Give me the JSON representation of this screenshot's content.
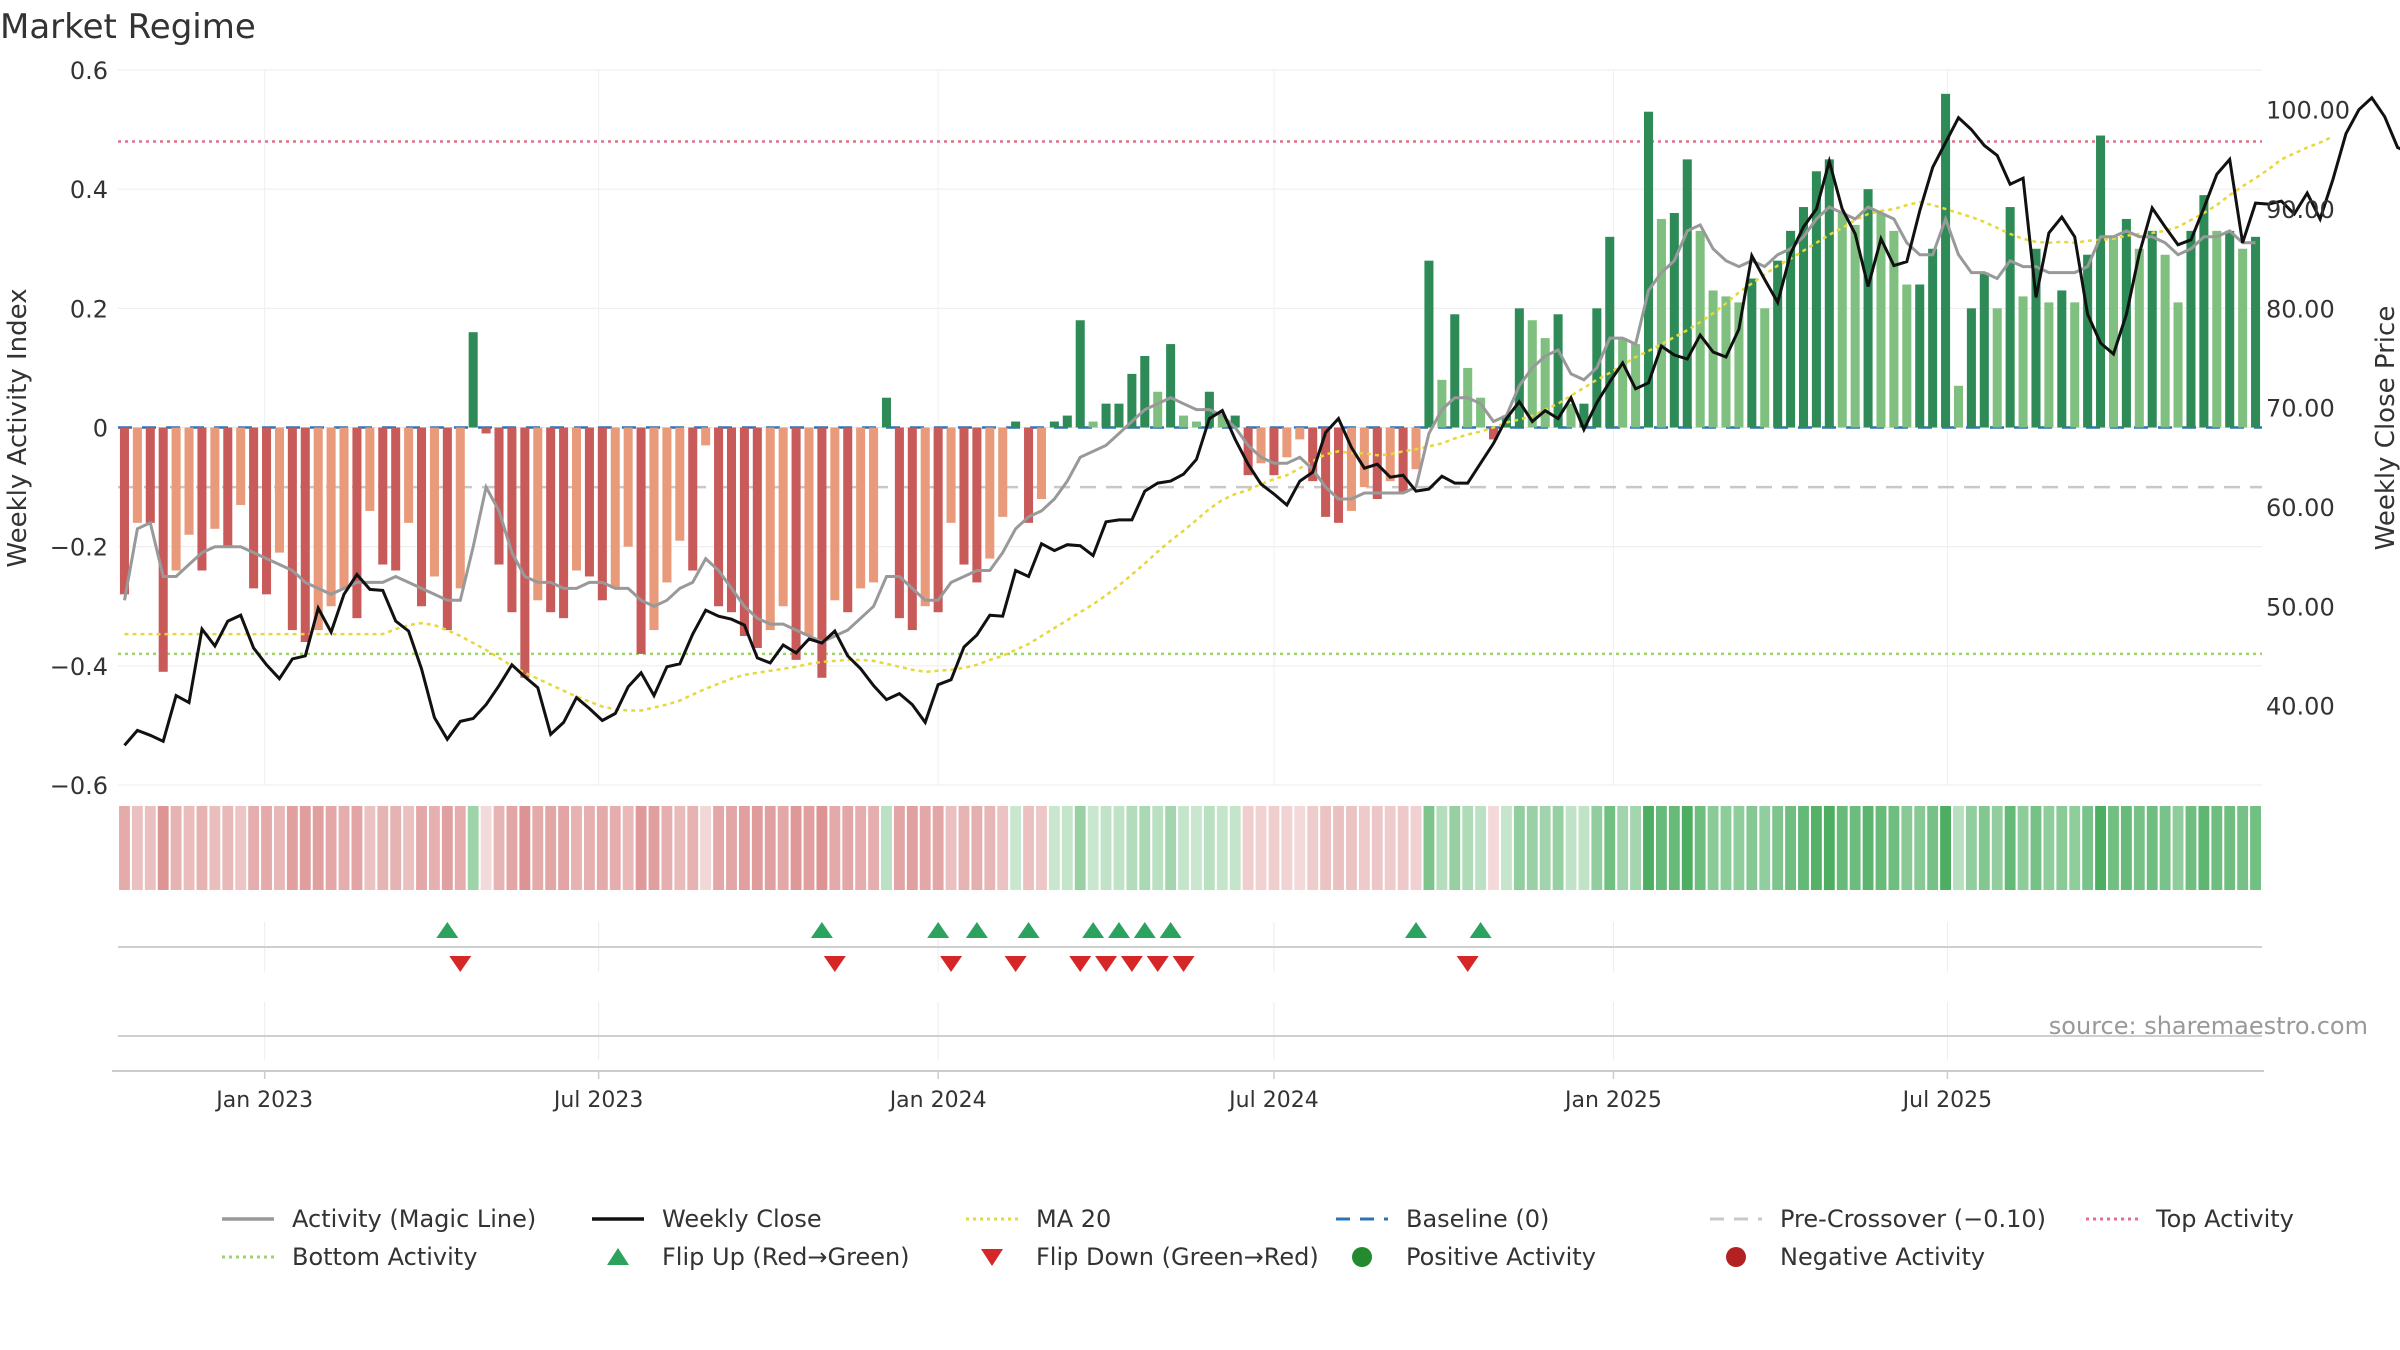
{
  "chart_data": {
    "type": "bar",
    "title": "Market Regime",
    "source": "source: sharemaestro.com",
    "left_axis": {
      "label": "Weekly Activity Index",
      "ylim": [
        -0.6,
        0.6
      ],
      "ticks": [
        "0.6",
        "0.4",
        "0.2",
        "0",
        "−0.2",
        "−0.4",
        "−0.6"
      ]
    },
    "right_axis": {
      "label": "Weekly Close Price",
      "ylim": [
        32.0,
        104.0
      ],
      "ticks": [
        "100.00",
        "90.00",
        "80.00",
        "70.00",
        "60.00",
        "50.00",
        "40.00"
      ]
    },
    "x_ticks": [
      "Jan 2023",
      "Jul 2023",
      "Jan 2024",
      "Jul 2024",
      "Jan 2025",
      "Jul 2025"
    ],
    "grid": true,
    "legend_position": "bottom",
    "reference_lines": {
      "top_activity": 0.48,
      "bottom_activity": -0.38,
      "baseline": 0.0,
      "pre_crossover": -0.1
    },
    "legend": [
      {
        "label": "Activity (Magic Line)",
        "kind": "line",
        "color": "#999999"
      },
      {
        "label": "Weekly Close",
        "kind": "line",
        "color": "#111111"
      },
      {
        "label": "MA 20",
        "kind": "dotted",
        "color": "#e6d83a"
      },
      {
        "label": "Baseline (0)",
        "kind": "dashed",
        "color": "#2d73b4"
      },
      {
        "label": "Pre-Crossover (−0.10)",
        "kind": "dashed",
        "color": "#c8c8c8"
      },
      {
        "label": "Top Activity",
        "kind": "dotted",
        "color": "#e0708c"
      },
      {
        "label": "Bottom Activity",
        "kind": "dotted",
        "color": "#9ed36a"
      },
      {
        "label": "Flip Up (Red→Green)",
        "kind": "triangle-up",
        "color": "#2ca25f"
      },
      {
        "label": "Flip Down (Green→Red)",
        "kind": "triangle-down",
        "color": "#d62728"
      },
      {
        "label": "Positive Activity",
        "kind": "dot",
        "color": "#238b2e"
      },
      {
        "label": "Negative Activity",
        "kind": "dot",
        "color": "#b22222"
      }
    ],
    "colors": {
      "pos_strong": "#2e8b57",
      "pos_weak": "#7fbf7f",
      "neg_strong": "#c85a5a",
      "neg_weak": "#e89a7a"
    },
    "x_start": "2022-10-17",
    "activity": [
      -0.28,
      -0.16,
      -0.16,
      -0.41,
      -0.24,
      -0.18,
      -0.24,
      -0.17,
      -0.2,
      -0.13,
      -0.27,
      -0.28,
      -0.21,
      -0.34,
      -0.36,
      -0.34,
      -0.3,
      -0.27,
      -0.32,
      -0.14,
      -0.23,
      -0.24,
      -0.16,
      -0.3,
      -0.25,
      -0.34,
      -0.27,
      0.16,
      -0.01,
      -0.23,
      -0.31,
      -0.42,
      -0.29,
      -0.31,
      -0.32,
      -0.24,
      -0.25,
      -0.29,
      -0.27,
      -0.2,
      -0.38,
      -0.34,
      -0.26,
      -0.19,
      -0.24,
      -0.03,
      -0.3,
      -0.31,
      -0.35,
      -0.37,
      -0.34,
      -0.3,
      -0.39,
      -0.35,
      -0.42,
      -0.29,
      -0.31,
      -0.27,
      -0.26,
      0.05,
      -0.32,
      -0.34,
      -0.3,
      -0.31,
      -0.16,
      -0.23,
      -0.26,
      -0.22,
      -0.15,
      0.01,
      -0.16,
      -0.12,
      0.01,
      0.02,
      0.18,
      0.01,
      0.04,
      0.04,
      0.09,
      0.12,
      0.06,
      0.14,
      0.02,
      0.01,
      0.06,
      0.02,
      0.02,
      -0.08,
      -0.06,
      -0.08,
      -0.05,
      -0.02,
      -0.09,
      -0.15,
      -0.16,
      -0.14,
      -0.1,
      -0.12,
      -0.09,
      -0.11,
      -0.07,
      0.28,
      0.08,
      0.19,
      0.1,
      0.05,
      -0.02,
      0.02,
      0.2,
      0.18,
      0.15,
      0.19,
      0.04,
      0.04,
      0.2,
      0.32,
      0.15,
      0.14,
      0.53,
      0.35,
      0.36,
      0.45,
      0.33,
      0.23,
      0.22,
      0.21,
      0.25,
      0.2,
      0.28,
      0.33,
      0.37,
      0.43,
      0.45,
      0.36,
      0.34,
      0.4,
      0.36,
      0.33,
      0.24,
      0.24,
      0.3,
      0.56,
      0.07,
      0.2,
      0.26,
      0.2,
      0.37,
      0.22,
      0.3,
      0.21,
      0.23,
      0.21,
      0.29,
      0.49,
      0.32,
      0.35,
      0.3,
      0.33,
      0.29,
      0.21,
      0.33,
      0.39,
      0.33,
      0.33,
      0.3,
      0.32
    ],
    "magic_line": [
      -0.29,
      -0.17,
      -0.16,
      -0.25,
      -0.25,
      -0.23,
      -0.21,
      -0.2,
      -0.2,
      -0.2,
      -0.21,
      -0.22,
      -0.23,
      -0.24,
      -0.26,
      -0.27,
      -0.28,
      -0.27,
      -0.26,
      -0.26,
      -0.26,
      -0.25,
      -0.26,
      -0.27,
      -0.28,
      -0.29,
      -0.29,
      -0.2,
      -0.1,
      -0.14,
      -0.21,
      -0.25,
      -0.26,
      -0.26,
      -0.27,
      -0.27,
      -0.26,
      -0.26,
      -0.27,
      -0.27,
      -0.29,
      -0.3,
      -0.29,
      -0.27,
      -0.26,
      -0.22,
      -0.24,
      -0.27,
      -0.3,
      -0.32,
      -0.33,
      -0.33,
      -0.34,
      -0.35,
      -0.36,
      -0.35,
      -0.34,
      -0.32,
      -0.3,
      -0.25,
      -0.25,
      -0.27,
      -0.29,
      -0.29,
      -0.26,
      -0.25,
      -0.24,
      -0.24,
      -0.21,
      -0.17,
      -0.15,
      -0.14,
      -0.12,
      -0.09,
      -0.05,
      -0.04,
      -0.03,
      -0.01,
      0.01,
      0.03,
      0.04,
      0.05,
      0.04,
      0.03,
      0.03,
      0.02,
      0.0,
      -0.03,
      -0.05,
      -0.06,
      -0.06,
      -0.05,
      -0.07,
      -0.1,
      -0.12,
      -0.12,
      -0.11,
      -0.11,
      -0.11,
      -0.11,
      -0.1,
      -0.01,
      0.03,
      0.05,
      0.05,
      0.04,
      0.01,
      0.02,
      0.07,
      0.1,
      0.12,
      0.13,
      0.09,
      0.08,
      0.1,
      0.15,
      0.15,
      0.14,
      0.23,
      0.26,
      0.28,
      0.33,
      0.34,
      0.3,
      0.28,
      0.27,
      0.28,
      0.27,
      0.29,
      0.3,
      0.32,
      0.35,
      0.37,
      0.36,
      0.35,
      0.37,
      0.36,
      0.35,
      0.31,
      0.29,
      0.29,
      0.35,
      0.29,
      0.26,
      0.26,
      0.25,
      0.28,
      0.27,
      0.27,
      0.26,
      0.26,
      0.26,
      0.27,
      0.32,
      0.32,
      0.33,
      0.32,
      0.32,
      0.31,
      0.29,
      0.3,
      0.32,
      0.32,
      0.33,
      0.31,
      0.31
    ],
    "close": [
      36.0,
      37.5,
      37.0,
      36.4,
      41.0,
      40.3,
      47.7,
      46.0,
      48.5,
      49.1,
      45.8,
      44.1,
      42.7,
      44.7,
      45.0,
      49.8,
      47.4,
      51.2,
      53.2,
      51.7,
      51.6,
      48.5,
      47.5,
      43.7,
      38.8,
      36.6,
      38.4,
      38.7,
      40.1,
      42.0,
      44.1,
      42.9,
      41.8,
      37.1,
      38.3,
      40.8,
      39.7,
      38.5,
      39.2,
      41.9,
      43.3,
      41.0,
      43.9,
      44.2,
      47.2,
      49.6,
      49.0,
      48.7,
      48.1,
      44.8,
      44.3,
      46.1,
      45.3,
      46.7,
      46.3,
      47.5,
      45.0,
      43.7,
      42.0,
      40.6,
      41.2,
      40.1,
      38.3,
      42.1,
      42.6,
      45.9,
      47.1,
      49.1,
      49.0,
      53.6,
      53.0,
      56.3,
      55.6,
      56.2,
      56.1,
      55.1,
      58.5,
      58.7,
      58.7,
      61.6,
      62.4,
      62.6,
      63.3,
      64.8,
      68.9,
      69.7,
      66.8,
      64.3,
      62.3,
      61.3,
      60.2,
      62.6,
      63.5,
      67.5,
      68.9,
      66.0,
      63.9,
      64.3,
      63.0,
      63.2,
      61.6,
      61.8,
      63.1,
      62.4,
      62.4,
      64.4,
      66.4,
      68.9,
      70.6,
      68.6,
      69.7,
      68.9,
      71.0,
      67.8,
      70.5,
      72.6,
      74.5,
      71.9,
      72.5,
      76.2,
      75.3,
      74.9,
      77.3,
      75.6,
      75.1,
      77.9,
      85.3,
      82.9,
      80.6,
      85.5,
      88.2,
      90.0,
      94.8,
      90.0,
      87.5,
      82.2,
      87.0,
      84.3,
      84.7,
      89.8,
      94.2,
      96.7,
      99.2,
      98.0,
      96.4,
      95.4,
      92.5,
      93.1,
      81.1,
      87.6,
      89.2,
      87.2,
      79.4,
      76.5,
      75.4,
      79.4,
      85.5,
      90.1,
      88.2,
      86.4,
      86.9,
      90.1,
      93.5,
      95.0,
      86.6,
      90.6,
      90.5,
      90.8,
      89.5,
      91.6,
      89.0,
      93.0,
      97.6,
      100.0,
      101.2,
      99.3,
      96.2,
      95.6,
      96.7,
      95.9,
      96.2,
      96.5,
      99.5,
      100.0,
      98.0,
      99.8,
      100.5
    ],
    "ma20": [
      47.2,
      47.2,
      47.2,
      47.2,
      47.2,
      47.2,
      47.2,
      47.2,
      47.2,
      47.2,
      47.2,
      47.2,
      47.2,
      47.2,
      47.2,
      47.2,
      47.2,
      47.2,
      47.2,
      47.2,
      47.2,
      47.7,
      48.1,
      48.3,
      48.1,
      47.6,
      47.0,
      46.3,
      45.6,
      44.8,
      44.0,
      43.3,
      42.7,
      42.1,
      41.5,
      40.9,
      40.4,
      39.9,
      39.6,
      39.5,
      39.5,
      39.8,
      40.1,
      40.5,
      41.1,
      41.7,
      42.2,
      42.7,
      43.1,
      43.3,
      43.5,
      43.7,
      43.9,
      44.2,
      44.4,
      44.5,
      44.6,
      44.6,
      44.5,
      44.2,
      43.9,
      43.6,
      43.4,
      43.5,
      43.6,
      43.8,
      44.1,
      44.6,
      45.0,
      45.6,
      46.2,
      47.0,
      47.8,
      48.6,
      49.4,
      50.2,
      51.1,
      52.1,
      53.2,
      54.3,
      55.5,
      56.6,
      57.6,
      58.7,
      59.8,
      60.7,
      61.3,
      61.7,
      62.3,
      62.8,
      63.2,
      63.9,
      64.6,
      65.3,
      65.6,
      65.4,
      65.4,
      65.2,
      65.3,
      65.6,
      65.8,
      66.1,
      66.4,
      66.9,
      67.3,
      67.6,
      68.0,
      68.5,
      68.8,
      69.2,
      69.8,
      70.4,
      71.2,
      72.0,
      72.8,
      73.5,
      74.3,
      75.1,
      75.7,
      76.4,
      77.1,
      77.8,
      78.6,
      79.5,
      80.5,
      81.6,
      82.5,
      83.4,
      84.3,
      85.0,
      85.8,
      86.6,
      87.4,
      88.1,
      88.9,
      89.5,
      89.8,
      90.0,
      90.4,
      90.7,
      90.4,
      90.0,
      89.6,
      89.2,
      88.7,
      88.1,
      87.5,
      87.0,
      86.7,
      86.6,
      86.7,
      86.6,
      86.8,
      86.9,
      87.0,
      87.3,
      87.5,
      87.6,
      87.8,
      88.2,
      88.9,
      89.6,
      90.4,
      91.4,
      92.3,
      93.1,
      94.0,
      95.0,
      95.6,
      96.2,
      96.7,
      97.3
    ]
  },
  "markers": {
    "flip_up_weeks": [
      25,
      54,
      63,
      66,
      70,
      75,
      77,
      79,
      81,
      100,
      105
    ],
    "flip_down_weeks": [
      26,
      55,
      64,
      69,
      74,
      76,
      78,
      80,
      82,
      104
    ]
  }
}
